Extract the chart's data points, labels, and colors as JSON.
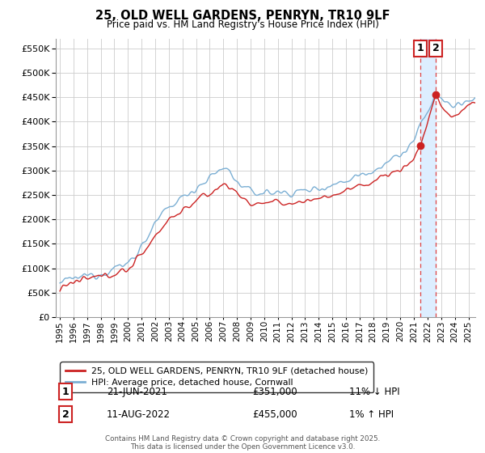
{
  "title": "25, OLD WELL GARDENS, PENRYN, TR10 9LF",
  "subtitle": "Price paid vs. HM Land Registry's House Price Index (HPI)",
  "legend_line1": "25, OLD WELL GARDENS, PENRYN, TR10 9LF (detached house)",
  "legend_line2": "HPI: Average price, detached house, Cornwall",
  "footer": "Contains HM Land Registry data © Crown copyright and database right 2025.\nThis data is licensed under the Open Government Licence v3.0.",
  "sale1_label": "1",
  "sale1_date": "21-JUN-2021",
  "sale1_price": "£351,000",
  "sale1_hpi": "11% ↓ HPI",
  "sale2_label": "2",
  "sale2_date": "11-AUG-2022",
  "sale2_price": "£455,000",
  "sale2_hpi": "1% ↑ HPI",
  "sale1_year": 2021.47,
  "sale1_value": 351000,
  "sale2_year": 2022.61,
  "sale2_value": 455000,
  "hpi_color": "#7bafd4",
  "price_color": "#cc2222",
  "dashed_color": "#dd4444",
  "shade_color": "#ddeeff",
  "grid_color": "#cccccc",
  "background_color": "#ffffff",
  "ylim": [
    0,
    570000
  ],
  "xlim_start": 1994.7,
  "xlim_end": 2025.5,
  "yticks": [
    0,
    50000,
    100000,
    150000,
    200000,
    250000,
    300000,
    350000,
    400000,
    450000,
    500000,
    550000
  ],
  "xtick_years": [
    1995,
    1996,
    1997,
    1998,
    1999,
    2000,
    2001,
    2002,
    2003,
    2004,
    2005,
    2006,
    2007,
    2008,
    2009,
    2010,
    2011,
    2012,
    2013,
    2014,
    2015,
    2016,
    2017,
    2018,
    2019,
    2020,
    2021,
    2022,
    2023,
    2024,
    2025
  ]
}
